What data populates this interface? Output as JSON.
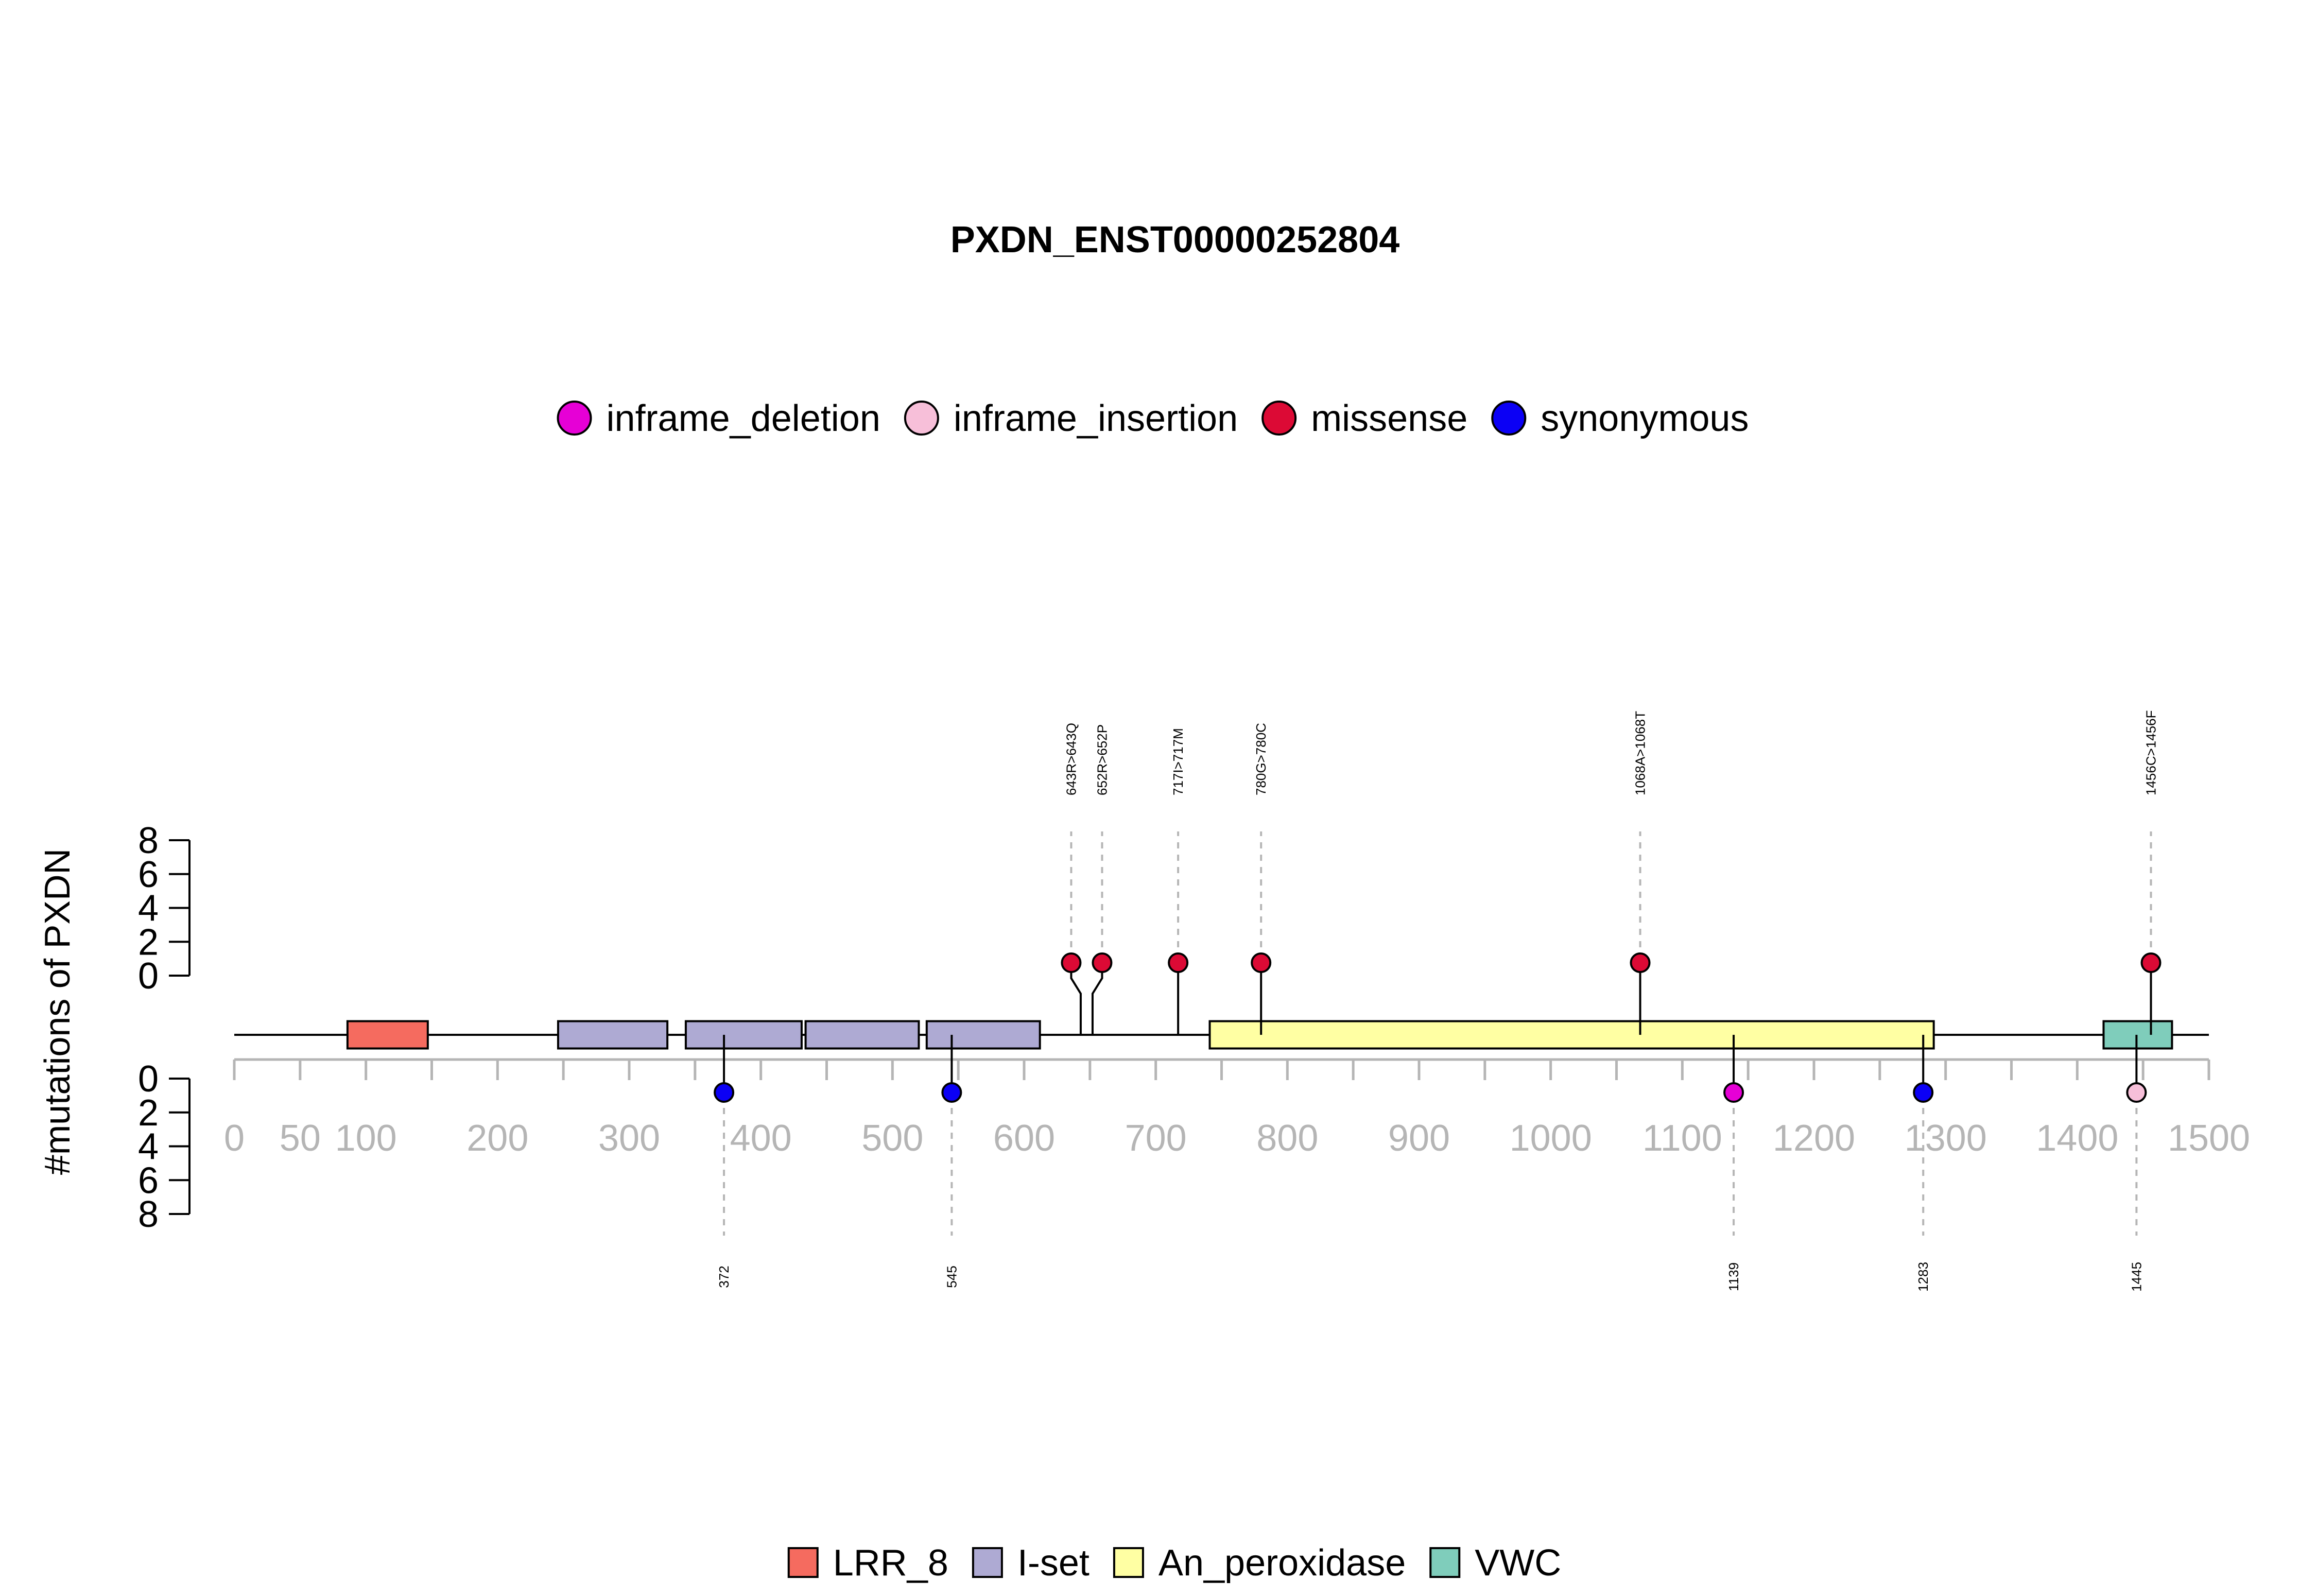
{
  "chart_data": {
    "type": "lollipop",
    "title": "PXDN_ENST00000252804",
    "ylabel": "#mutations of PXDN",
    "xlim": [
      0,
      1500
    ],
    "x_ticks": [
      0,
      50,
      100,
      200,
      300,
      400,
      500,
      600,
      700,
      800,
      900,
      1000,
      1100,
      1200,
      1300,
      1400,
      1500
    ],
    "y_ticks": [
      0,
      2,
      4,
      6,
      8
    ],
    "mutation_legend": [
      {
        "name": "inframe_deletion",
        "color": "#e600d6"
      },
      {
        "name": "inframe_insertion",
        "color": "#f7bfd9"
      },
      {
        "name": "missense",
        "color": "#dc0a35"
      },
      {
        "name": "synonymous",
        "color": "#0b00f5"
      }
    ],
    "domain_legend": [
      {
        "name": "LRR_8",
        "color": "#f56b5f"
      },
      {
        "name": "I-set",
        "color": "#aeaad3"
      },
      {
        "name": "An_peroxidase",
        "color": "#ffffa3"
      },
      {
        "name": "VWC",
        "color": "#7fcdbb"
      }
    ],
    "domains": [
      {
        "name": "LRR_8",
        "start": 86,
        "end": 147
      },
      {
        "name": "I-set",
        "start": 246,
        "end": 329
      },
      {
        "name": "I-set",
        "start": 343,
        "end": 431
      },
      {
        "name": "I-set",
        "start": 434,
        "end": 520
      },
      {
        "name": "I-set",
        "start": 526,
        "end": 612
      },
      {
        "name": "An_peroxidase",
        "start": 741,
        "end": 1291
      },
      {
        "name": "VWC",
        "start": 1420,
        "end": 1472
      }
    ],
    "mutations_above": [
      {
        "position": 643,
        "label": "643R>643Q",
        "type": "missense",
        "count": 1
      },
      {
        "position": 652,
        "label": "652R>652P",
        "type": "missense",
        "count": 1
      },
      {
        "position": 717,
        "label": "717I>717M",
        "type": "missense",
        "count": 1
      },
      {
        "position": 780,
        "label": "780G>780C",
        "type": "missense",
        "count": 1
      },
      {
        "position": 1068,
        "label": "1068A>1068T",
        "type": "missense",
        "count": 1
      },
      {
        "position": 1456,
        "label": "1456C>1456F",
        "type": "missense",
        "count": 1
      }
    ],
    "mutations_below": [
      {
        "position": 372,
        "label": "372",
        "type": "synonymous",
        "count": 1
      },
      {
        "position": 545,
        "label": "545",
        "type": "synonymous",
        "count": 1
      },
      {
        "position": 1139,
        "label": "1139",
        "type": "inframe_deletion",
        "count": 1
      },
      {
        "position": 1283,
        "label": "1283",
        "type": "synonymous",
        "count": 1
      },
      {
        "position": 1445,
        "label": "1445",
        "type": "inframe_insertion",
        "count": 1
      }
    ]
  }
}
